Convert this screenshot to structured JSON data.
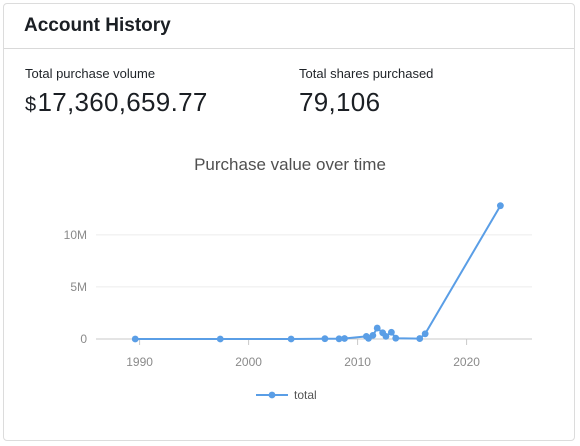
{
  "card": {
    "title": "Account History"
  },
  "stats": {
    "volume_label": "Total purchase volume",
    "volume_currency": "$",
    "volume_value": "17,360,659.77",
    "shares_label": "Total shares purchased",
    "shares_value": "79,106"
  },
  "chart_data": {
    "type": "line",
    "title": "Purchase value over time",
    "xlabel": "",
    "ylabel": "",
    "xlim": [
      1986,
      2026
    ],
    "ylim": [
      0,
      12000000
    ],
    "x_ticks": [
      1990,
      2000,
      2010,
      2020
    ],
    "x_tick_labels": [
      "1990",
      "2000",
      "2010",
      "2020"
    ],
    "y_ticks": [
      0,
      5000000,
      10000000
    ],
    "y_tick_labels": [
      "0",
      "5M",
      "10M"
    ],
    "grid": true,
    "legend": "bottom",
    "color": "#5a9ee6",
    "series": [
      {
        "name": "total",
        "x": [
          1989.6,
          1997.4,
          2003.9,
          2007.0,
          2008.3,
          2008.8,
          2010.8,
          2011.0,
          2011.4,
          2011.8,
          2012.3,
          2012.6,
          2013.1,
          2013.5,
          2015.7,
          2016.2,
          2023.1
        ],
        "y": [
          0,
          0,
          0,
          30000,
          20000,
          50000,
          250000,
          60000,
          350000,
          1050000,
          600000,
          250000,
          650000,
          80000,
          40000,
          500000,
          12800000
        ]
      }
    ]
  }
}
